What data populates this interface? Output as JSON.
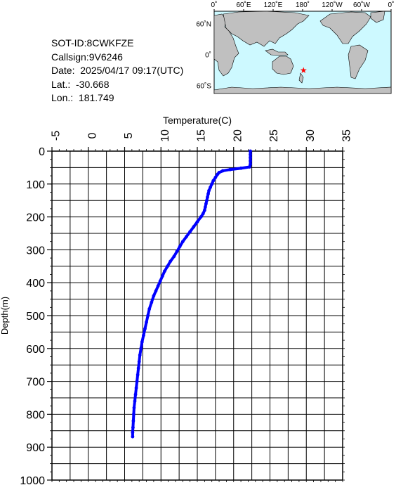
{
  "info": {
    "sot_id": "SOT-ID:8CWKFZE",
    "callsign": "Callsign:9V6246",
    "date": "Date:  2025/04/17 09:17(UTC)",
    "lat": "Lat.:  -30.668",
    "lon": "Lon.:  181.749"
  },
  "map": {
    "top_labels": [
      "0˚",
      "60˚E",
      "120˚E",
      "180˚",
      "120˚W",
      "60˚W",
      "0˚"
    ],
    "lat_labels": [
      "60˚N",
      "0˚",
      "60˚S"
    ],
    "marker": {
      "lat": -30.668,
      "lon": 181.749
    },
    "colors": {
      "ocean": "#cdf9ff",
      "land": "#c0c0c0",
      "marker": "#ff0000"
    }
  },
  "chart_data": {
    "type": "scatter",
    "xlabel": "Temperature(C)",
    "ylabel": "Depth(m)",
    "xlim": [
      -5,
      35
    ],
    "ylim": [
      1000,
      0
    ],
    "x_axis_position": "top",
    "y_axis_inverted": true,
    "grid": true,
    "x_ticks": [
      -5,
      0,
      5,
      10,
      15,
      20,
      25,
      30,
      35
    ],
    "y_ticks": [
      0,
      100,
      200,
      300,
      400,
      500,
      600,
      700,
      800,
      900,
      1000
    ],
    "series": [
      {
        "color": "#0000ff",
        "points": [
          [
            22.3,
            0
          ],
          [
            22.3,
            10
          ],
          [
            22.3,
            20
          ],
          [
            22.3,
            30
          ],
          [
            22.3,
            40
          ],
          [
            22.2,
            48
          ],
          [
            21.0,
            52
          ],
          [
            19.5,
            56
          ],
          [
            18.5,
            60
          ],
          [
            18.0,
            65
          ],
          [
            17.8,
            70
          ],
          [
            17.5,
            80
          ],
          [
            17.2,
            90
          ],
          [
            17.0,
            100
          ],
          [
            16.8,
            110
          ],
          [
            16.6,
            120
          ],
          [
            16.5,
            130
          ],
          [
            16.4,
            140
          ],
          [
            16.3,
            150
          ],
          [
            16.2,
            160
          ],
          [
            16.1,
            170
          ],
          [
            16.0,
            180
          ],
          [
            15.8,
            190
          ],
          [
            15.5,
            200
          ],
          [
            15.0,
            215
          ],
          [
            14.5,
            230
          ],
          [
            14.0,
            245
          ],
          [
            13.5,
            260
          ],
          [
            13.0,
            275
          ],
          [
            12.6,
            290
          ],
          [
            12.2,
            305
          ],
          [
            11.8,
            320
          ],
          [
            11.3,
            335
          ],
          [
            10.9,
            350
          ],
          [
            10.5,
            365
          ],
          [
            10.2,
            380
          ],
          [
            9.9,
            395
          ],
          [
            9.6,
            410
          ],
          [
            9.3,
            425
          ],
          [
            9.0,
            440
          ],
          [
            8.7,
            460
          ],
          [
            8.4,
            480
          ],
          [
            8.2,
            500
          ],
          [
            8.0,
            520
          ],
          [
            7.8,
            540
          ],
          [
            7.6,
            560
          ],
          [
            7.4,
            580
          ],
          [
            7.25,
            600
          ],
          [
            7.1,
            620
          ],
          [
            7.0,
            640
          ],
          [
            6.9,
            660
          ],
          [
            6.8,
            680
          ],
          [
            6.7,
            700
          ],
          [
            6.6,
            720
          ],
          [
            6.5,
            740
          ],
          [
            6.4,
            760
          ],
          [
            6.3,
            780
          ],
          [
            6.25,
            800
          ],
          [
            6.2,
            820
          ],
          [
            6.15,
            840
          ],
          [
            6.1,
            855
          ],
          [
            6.1,
            868
          ]
        ]
      }
    ]
  }
}
